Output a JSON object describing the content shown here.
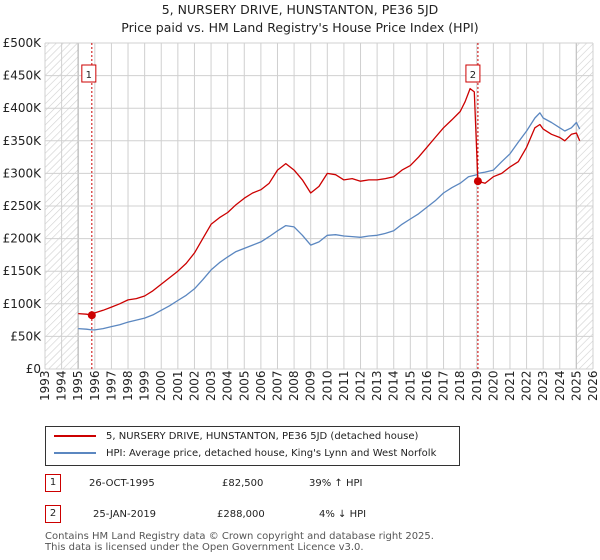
{
  "title": "5, NURSERY DRIVE, HUNSTANTON, PE36 5JD",
  "subtitle": "Price paid vs. HM Land Registry's House Price Index (HPI)",
  "colors": {
    "property": "#cc0000",
    "hpi": "#5b87c0",
    "sale_marker": "#cc0000",
    "grid": "#d0d0d0",
    "hatch": "#d8d8d8"
  },
  "legend": [
    {
      "label": "5, NURSERY DRIVE, HUNSTANTON, PE36 5JD (detached house)"
    },
    {
      "label": "HPI: Average price, detached house, King's Lynn and West Norfolk"
    }
  ],
  "sales": [
    {
      "badge": "1",
      "date": "26-OCT-1995",
      "price": "£82,500",
      "hpi_change": "39% ↑ HPI"
    },
    {
      "badge": "2",
      "date": "25-JAN-2019",
      "price": "£288,000",
      "hpi_change": "4% ↓ HPI"
    }
  ],
  "footer": {
    "line1": "Contains HM Land Registry data © Crown copyright and database right 2025.",
    "line2": "This data is licensed under the Open Government Licence v3.0."
  },
  "chart_data": {
    "type": "line",
    "title": "5, NURSERY DRIVE, HUNSTANTON, PE36 5JD",
    "xlabel": "",
    "ylabel": "",
    "xlim": [
      1993,
      2026
    ],
    "ylim": [
      0,
      500000
    ],
    "x_ticks": [
      1993,
      1994,
      1995,
      1996,
      1997,
      1998,
      1999,
      2000,
      2001,
      2002,
      2003,
      2004,
      2005,
      2006,
      2007,
      2008,
      2009,
      2010,
      2011,
      2012,
      2013,
      2014,
      2015,
      2016,
      2017,
      2018,
      2019,
      2020,
      2021,
      2022,
      2023,
      2024,
      2025,
      2026
    ],
    "y_ticks": [
      0,
      50000,
      100000,
      150000,
      200000,
      250000,
      300000,
      350000,
      400000,
      450000,
      500000
    ],
    "y_tick_labels": [
      "£0",
      "£50K",
      "£100K",
      "£150K",
      "£200K",
      "£250K",
      "£300K",
      "£350K",
      "£400K",
      "£450K",
      "£500K"
    ],
    "grid": true,
    "hatched_ranges": [
      [
        1993,
        1995.0
      ],
      [
        2025.0,
        2026
      ]
    ],
    "series": [
      {
        "name": "5, NURSERY DRIVE, HUNSTANTON, PE36 5JD (detached house)",
        "color": "#cc0000",
        "x": [
          1995.0,
          1995.5,
          1995.82,
          1996.0,
          1996.5,
          1997.0,
          1997.5,
          1998.0,
          1998.5,
          1999.0,
          1999.5,
          2000.0,
          2000.5,
          2001.0,
          2001.5,
          2002.0,
          2002.5,
          2003.0,
          2003.5,
          2004.0,
          2004.5,
          2005.0,
          2005.5,
          2006.0,
          2006.5,
          2007.0,
          2007.5,
          2008.0,
          2008.5,
          2009.0,
          2009.5,
          2010.0,
          2010.5,
          2011.0,
          2011.5,
          2012.0,
          2012.5,
          2013.0,
          2013.5,
          2014.0,
          2014.5,
          2015.0,
          2015.5,
          2016.0,
          2016.5,
          2017.0,
          2017.5,
          2018.0,
          2018.3,
          2018.6,
          2018.85,
          2019.07,
          2019.5,
          2020.0,
          2020.5,
          2021.0,
          2021.5,
          2022.0,
          2022.5,
          2022.8,
          2023.0,
          2023.5,
          2024.0,
          2024.3,
          2024.7,
          2025.0,
          2025.2
        ],
        "values": [
          85000,
          84000,
          82500,
          86000,
          90000,
          95000,
          100000,
          106000,
          108000,
          112000,
          120000,
          130000,
          140000,
          150000,
          162000,
          178000,
          200000,
          222000,
          232000,
          240000,
          252000,
          262000,
          270000,
          275000,
          285000,
          305000,
          315000,
          305000,
          290000,
          270000,
          280000,
          300000,
          298000,
          290000,
          292000,
          288000,
          290000,
          290000,
          292000,
          295000,
          305000,
          312000,
          325000,
          340000,
          355000,
          370000,
          382000,
          395000,
          410000,
          430000,
          425000,
          288000,
          285000,
          295000,
          300000,
          310000,
          318000,
          340000,
          370000,
          375000,
          368000,
          360000,
          355000,
          350000,
          360000,
          362000,
          350000
        ]
      },
      {
        "name": "HPI: Average price, detached house, King's Lynn and West Norfolk",
        "color": "#5b87c0",
        "x": [
          1995.0,
          1995.5,
          1995.82,
          1996.0,
          1996.5,
          1997.0,
          1997.5,
          1998.0,
          1998.5,
          1999.0,
          1999.5,
          2000.0,
          2000.5,
          2001.0,
          2001.5,
          2002.0,
          2002.5,
          2003.0,
          2003.5,
          2004.0,
          2004.5,
          2005.0,
          2005.5,
          2006.0,
          2006.5,
          2007.0,
          2007.5,
          2008.0,
          2008.5,
          2009.0,
          2009.5,
          2010.0,
          2010.5,
          2011.0,
          2011.5,
          2012.0,
          2012.5,
          2013.0,
          2013.5,
          2014.0,
          2014.5,
          2015.0,
          2015.5,
          2016.0,
          2016.5,
          2017.0,
          2017.5,
          2018.0,
          2018.5,
          2019.0,
          2019.07,
          2019.5,
          2020.0,
          2020.5,
          2021.0,
          2021.5,
          2022.0,
          2022.5,
          2022.8,
          2023.0,
          2023.5,
          2024.0,
          2024.3,
          2024.7,
          2025.0,
          2025.2
        ],
        "values": [
          62000,
          61000,
          60000,
          60000,
          62000,
          65000,
          68000,
          72000,
          75000,
          78000,
          83000,
          90000,
          97000,
          105000,
          113000,
          123000,
          137000,
          152000,
          163000,
          172000,
          180000,
          185000,
          190000,
          195000,
          203000,
          212000,
          220000,
          218000,
          205000,
          190000,
          195000,
          205000,
          206000,
          204000,
          203000,
          202000,
          204000,
          205000,
          208000,
          212000,
          222000,
          230000,
          238000,
          248000,
          258000,
          270000,
          278000,
          285000,
          295000,
          298000,
          300000,
          302000,
          305000,
          318000,
          330000,
          348000,
          365000,
          385000,
          393000,
          385000,
          378000,
          370000,
          365000,
          370000,
          378000,
          368000
        ]
      }
    ],
    "annotations": [
      {
        "label": "1",
        "x": 1995.82,
        "y": 82500
      },
      {
        "label": "2",
        "x": 2019.07,
        "y": 288000
      }
    ]
  }
}
